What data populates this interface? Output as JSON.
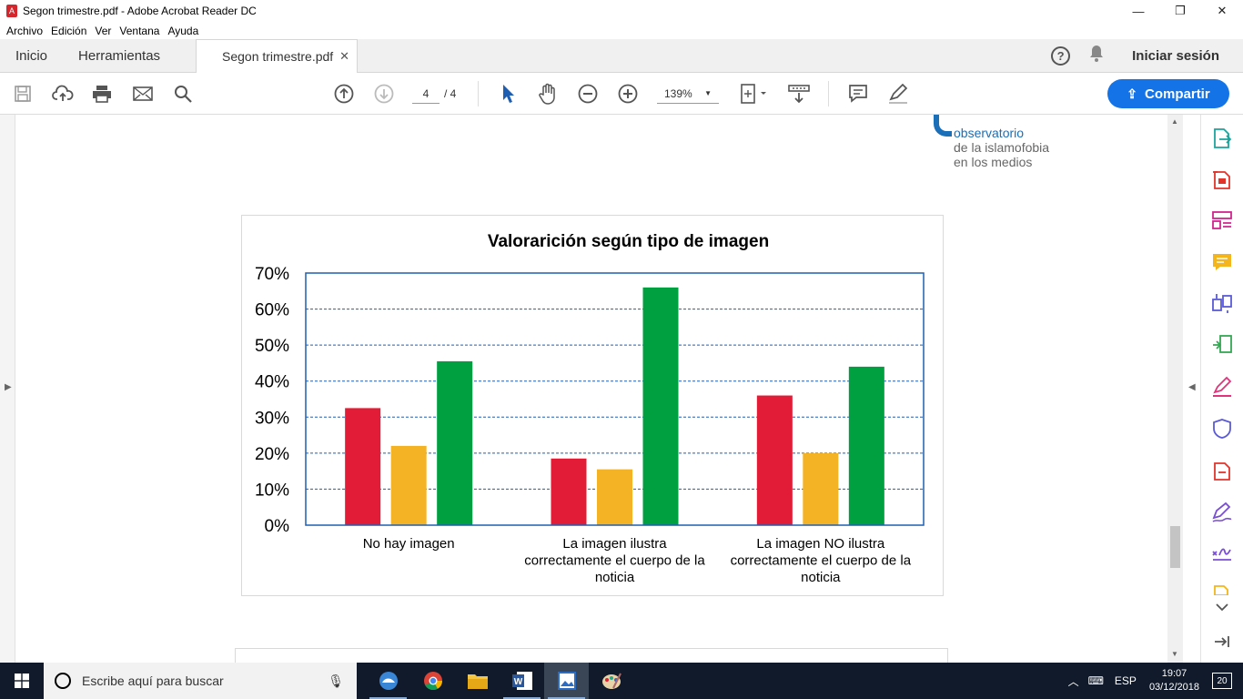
{
  "window": {
    "title": "Segon trimestre.pdf - Adobe Acrobat Reader DC",
    "controls": [
      "—",
      "❐",
      "✕"
    ]
  },
  "menu": [
    "Archivo",
    "Edición",
    "Ver",
    "Ventana",
    "Ayuda"
  ],
  "tabs": {
    "home": "Inicio",
    "tools": "Herramientas",
    "document": "Segon trimestre.pdf",
    "signin": "Iniciar sesión",
    "help": "?"
  },
  "toolbar": {
    "page_current": "4",
    "page_total": "/ 4",
    "zoom": "139%",
    "share_label": "Compartir"
  },
  "document": {
    "logo_lines": [
      "observatorio",
      "de la islamofobia",
      "en los medios"
    ]
  },
  "chart_data": {
    "type": "bar",
    "title": "Valorarición según tipo de imagen",
    "categories": [
      [
        "No hay imagen"
      ],
      [
        "La imagen ilustra",
        "correctamente el cuerpo de la",
        "noticia"
      ],
      [
        "La imagen NO ilustra",
        "correctamente el cuerpo de la",
        "noticia"
      ]
    ],
    "series": [
      {
        "color": "#e21c36",
        "values": [
          32.5,
          18.5,
          36
        ]
      },
      {
        "color": "#f4b324",
        "values": [
          22,
          15.5,
          20
        ]
      },
      {
        "color": "#00a040",
        "values": [
          45.5,
          66,
          44
        ]
      }
    ],
    "ylim": [
      0,
      70
    ],
    "yticks": [
      "0%",
      "10%",
      "20%",
      "30%",
      "40%",
      "50%",
      "60%",
      "70%"
    ],
    "grid": true,
    "legend": "none"
  },
  "taskbar": {
    "search_placeholder": "Escribe aquí para buscar",
    "language": "ESP",
    "time": "19:07",
    "date": "03/12/2018",
    "notifications": "20"
  },
  "colors": {
    "accent": "#1473e6",
    "taskbar": "#101a2a",
    "logo": "#1a6fb8"
  }
}
